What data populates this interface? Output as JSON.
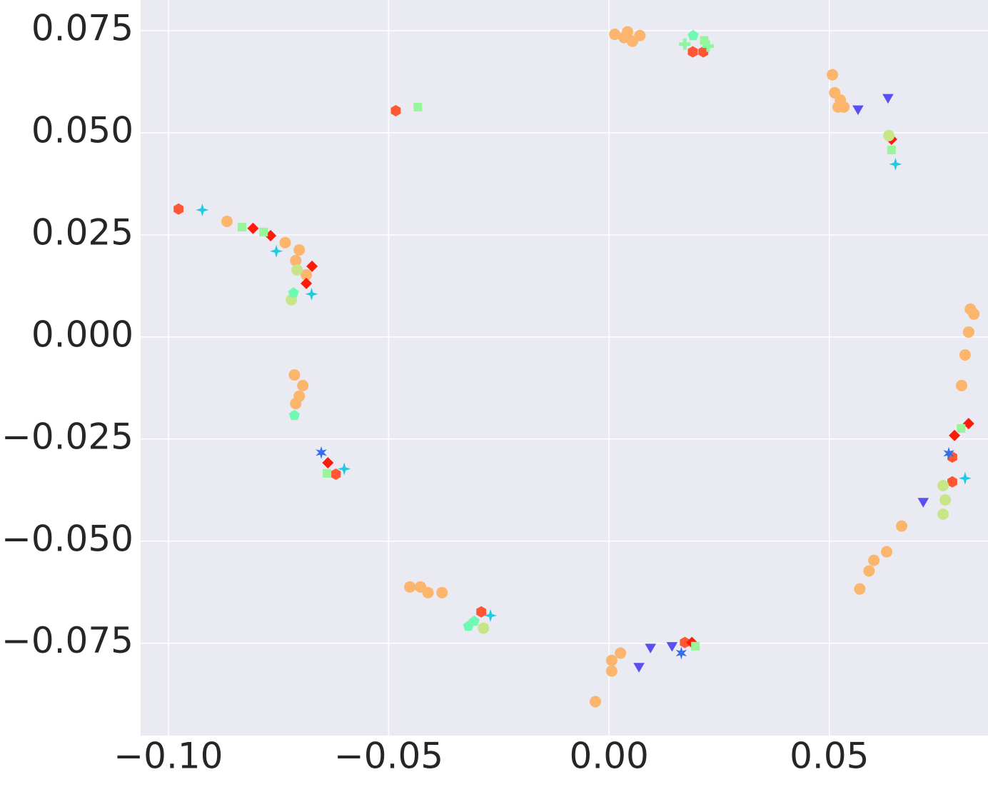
{
  "chart_data": {
    "type": "scatter",
    "xlim": [
      -0.1063,
      0.086
    ],
    "ylim": [
      -0.0976,
      0.0825
    ],
    "xticks": [
      {
        "value": -0.1,
        "label": "−0.10"
      },
      {
        "value": -0.05,
        "label": "−0.05"
      },
      {
        "value": 0,
        "label": "0.00"
      },
      {
        "value": 0.05,
        "label": "0.05"
      }
    ],
    "yticks": [
      {
        "value": -0.075,
        "label": "−0.075"
      },
      {
        "value": -0.05,
        "label": "−0.050"
      },
      {
        "value": -0.025,
        "label": "−0.025"
      },
      {
        "value": 0,
        "label": "0.000"
      },
      0.025,
      {
        "value": 0.05,
        "label": "0.050"
      },
      0.075
    ],
    "grid": true,
    "series": [
      {
        "color": "#fbb56c",
        "marker": "circle",
        "x": [
          0.0013,
          0.0034,
          0.0053,
          0.007,
          0.0042,
          0.0507,
          0.0512,
          0.0525,
          0.0533,
          0.052,
          -0.0867,
          -0.0735,
          -0.0703,
          -0.0711,
          -0.0687,
          -0.0714,
          -0.0695,
          -0.0703,
          -0.0711,
          -0.0428,
          -0.0411,
          -0.0452,
          -0.0379,
          0.0006,
          0.0026,
          -0.0031,
          0.0006,
          0.082,
          0.0828,
          0.0816,
          0.0808,
          0.08,
          0.0664,
          0.063,
          0.0601,
          0.0569,
          0.059
        ],
        "y": [
          0.0741,
          0.0733,
          0.0724,
          0.0738,
          0.0747,
          0.0642,
          0.0598,
          0.058,
          0.0563,
          0.0563,
          0.0283,
          0.0231,
          0.0213,
          0.0187,
          0.0152,
          -0.0093,
          -0.0119,
          -0.0145,
          -0.0163,
          -0.0612,
          -0.0626,
          -0.0612,
          -0.0626,
          -0.0792,
          -0.0774,
          -0.0893,
          -0.0818,
          0.0068,
          0.0056,
          0.0012,
          -0.0044,
          -0.0119,
          -0.0463,
          -0.0526,
          -0.0547,
          -0.0617,
          -0.0573
        ]
      },
      {
        "color": "#ff5733",
        "marker": "hexagon",
        "x": [
          -0.0977,
          -0.0484,
          0.019,
          0.0214,
          -0.062,
          -0.029,
          0.0779,
          0.0779,
          0.0172
        ],
        "y": [
          0.0313,
          0.0554,
          0.0698,
          0.0698,
          -0.0336,
          -0.0673,
          -0.0294,
          -0.0355,
          -0.0748
        ]
      },
      {
        "color": "#ff1a0a",
        "marker": "diamond",
        "x": [
          -0.0808,
          -0.0768,
          -0.0674,
          -0.0687,
          -0.0638,
          0.0641,
          0.0784,
          0.0816,
          0.0188
        ],
        "y": [
          0.0266,
          0.0248,
          0.0173,
          0.0131,
          -0.0308,
          0.0484,
          -0.0241,
          -0.0212,
          -0.0748
        ]
      },
      {
        "color": "#98f598",
        "marker": "square",
        "x": [
          -0.0434,
          -0.0833,
          -0.0784,
          -0.064,
          0.0216,
          0.0641,
          0.0799,
          0.0196
        ],
        "y": [
          0.0563,
          0.0269,
          0.0257,
          -0.0334,
          0.0726,
          0.0458,
          -0.0224,
          -0.0757
        ]
      },
      {
        "color": "#1ecbe1",
        "marker": "star",
        "x": [
          -0.0923,
          -0.0755,
          -0.0675,
          -0.0601,
          0.065,
          0.0808,
          -0.0269
        ],
        "y": [
          0.0311,
          0.021,
          0.0105,
          -0.0323,
          0.0423,
          -0.0346,
          -0.0682
        ]
      },
      {
        "color": "#5a4ff0",
        "marker": "triangle-down",
        "x": [
          0.0565,
          0.0633,
          0.0713,
          0.0068,
          0.0094,
          0.0143
        ],
        "y": [
          0.0559,
          0.0587,
          -0.0402,
          -0.0806,
          -0.0759,
          -0.0755
        ]
      },
      {
        "color": "#c9e58a",
        "marker": "circle",
        "x": [
          -0.0721,
          -0.0708,
          0.0758,
          0.0763,
          0.0758,
          -0.0285,
          0.0635
        ],
        "y": [
          0.0091,
          0.0164,
          -0.0364,
          -0.0399,
          -0.0434,
          -0.0713,
          0.0493
        ]
      },
      {
        "color": "#6ffab4",
        "marker": "pentagon",
        "x": [
          -0.0714,
          -0.0319,
          -0.0306,
          0.0191,
          -0.0716
        ],
        "y": [
          -0.0192,
          -0.0708,
          -0.0696,
          0.0738,
          0.0108
        ]
      },
      {
        "color": "#2f6ff0",
        "marker": "asterisk",
        "x": [
          -0.0653,
          0.0771,
          0.0164
        ],
        "y": [
          -0.0283,
          -0.0285,
          -0.0774
        ]
      },
      {
        "color": "#8ef6a0",
        "marker": "plus",
        "x": [
          0.0172,
          0.0225
        ],
        "y": [
          0.0717,
          0.0712
        ]
      }
    ]
  }
}
